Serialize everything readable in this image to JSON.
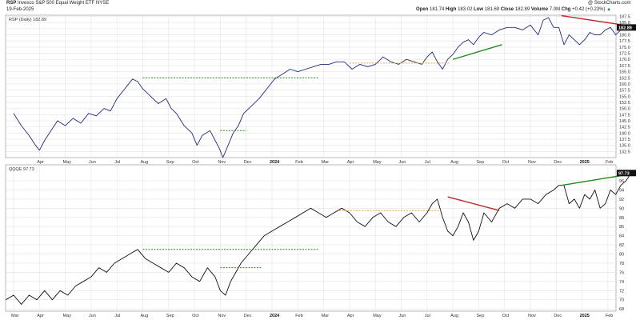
{
  "header": {
    "ticker": "RSP",
    "name": "Invesco S&P 500 Equal Weight ETF",
    "exchange": "NYSE",
    "date": "19-Feb-2025",
    "credit": "@ StockCharts.com",
    "open_label": "Open",
    "open": "181.74",
    "high_label": "High",
    "high": "183.02",
    "low_label": "Low",
    "low": "181.69",
    "close_label": "Close",
    "close": "182.89",
    "volume_label": "Volume",
    "volume": "7.0M",
    "chg_label": "Chg",
    "chg": "+0.42 (+0.23%)",
    "chg_arrow": "▲"
  },
  "colors": {
    "price_line": "#1f2a7a",
    "indicator_line": "#111111",
    "grid": "#e3e3e3",
    "green": "#1e8a1e",
    "red": "#c0282d",
    "orange": "#e8a33c"
  },
  "chart_data": [
    {
      "type": "line",
      "legend": "RSP (Daily) 182.89",
      "last_value_label": "182.89",
      "ylim": [
        130,
        188
      ],
      "y_ticks": [
        "132.5",
        "135.0",
        "137.5",
        "140.0",
        "142.5",
        "145.0",
        "147.5",
        "150.0",
        "152.5",
        "155.0",
        "157.5",
        "160.0",
        "162.5",
        "165.0",
        "167.5",
        "170.0",
        "172.5",
        "175.0",
        "177.5",
        "180.0",
        "182.5",
        "185.0",
        "187.5"
      ],
      "x_ticks": [
        {
          "label": "Apr",
          "x": 1
        },
        {
          "label": "May",
          "x": 2
        },
        {
          "label": "Jun",
          "x": 3
        },
        {
          "label": "Jul",
          "x": 4
        },
        {
          "label": "Aug",
          "x": 5
        },
        {
          "label": "Sep",
          "x": 6
        },
        {
          "label": "Oct",
          "x": 7
        },
        {
          "label": "Nov",
          "x": 8
        },
        {
          "label": "Dec",
          "x": 9
        },
        {
          "label": "2024",
          "x": 10
        },
        {
          "label": "Feb",
          "x": 11
        },
        {
          "label": "Mar",
          "x": 12
        },
        {
          "label": "Apr",
          "x": 13
        },
        {
          "label": "May",
          "x": 14
        },
        {
          "label": "Jun",
          "x": 15
        },
        {
          "label": "Jul",
          "x": 16
        },
        {
          "label": "Aug",
          "x": 17
        },
        {
          "label": "Sep",
          "x": 18
        },
        {
          "label": "Oct",
          "x": 19
        },
        {
          "label": "Nov",
          "x": 20
        },
        {
          "label": "Dec",
          "x": 21
        },
        {
          "label": "2025",
          "x": 22
        },
        {
          "label": "Feb",
          "x": 23
        }
      ],
      "x_bold": [
        "2024",
        "2025"
      ],
      "xlim": [
        0,
        23.9
      ],
      "series": [
        {
          "x": [
            0,
            0.3,
            0.6,
            0.85,
            1.0,
            1.2,
            1.45,
            1.7,
            2.0,
            2.3,
            2.6,
            2.9,
            3.2,
            3.5,
            3.75,
            4.0,
            4.3,
            4.6,
            4.8,
            5.0,
            5.3,
            5.6,
            5.9,
            6.1,
            6.3,
            6.6,
            6.9,
            7.1,
            7.3,
            7.6,
            7.8,
            7.95,
            8.1,
            8.3,
            8.5,
            8.7,
            8.9,
            9.2,
            9.5,
            9.8,
            10.1,
            10.4,
            10.7,
            11.0,
            11.3,
            11.6,
            11.9,
            12.2,
            12.5,
            12.8,
            13.1,
            13.4,
            13.7,
            14.0,
            14.3,
            14.6,
            14.9,
            15.2,
            15.5,
            15.8,
            16.0,
            16.2,
            16.4,
            16.6,
            16.8,
            17.0,
            17.2,
            17.4,
            17.6,
            17.8,
            18.0,
            18.2,
            18.5,
            18.8,
            19.1,
            19.4,
            19.7,
            20.0,
            20.3,
            20.5,
            20.7,
            20.9,
            21.1,
            21.3,
            21.5,
            21.7,
            21.9,
            22.1,
            22.3,
            22.5,
            22.7,
            22.9,
            23.1,
            23.3,
            23.5,
            23.7,
            23.9
          ],
          "y": [
            148,
            143,
            139,
            135,
            133,
            137,
            141,
            145,
            143,
            146,
            144,
            148,
            147,
            150,
            149,
            154,
            158,
            162,
            161,
            158,
            155,
            152,
            154,
            150,
            148,
            143,
            140,
            135,
            139,
            141,
            137,
            134,
            130,
            135,
            140,
            143,
            148,
            151,
            154,
            158,
            162,
            164,
            166,
            165,
            166,
            167,
            168,
            168,
            169,
            169,
            166,
            168,
            167,
            168,
            171,
            169,
            168,
            170,
            169,
            168,
            171,
            173,
            169,
            166,
            170,
            172,
            175,
            177,
            178,
            176,
            179,
            181,
            180,
            182,
            183,
            183,
            182,
            184,
            180,
            186,
            187,
            183,
            183,
            176,
            180,
            178,
            176,
            178,
            181,
            180,
            180,
            182,
            183,
            180,
            182,
            182,
            183
          ]
        }
      ],
      "trendlines": [
        {
          "color": "green",
          "style": "dashed",
          "x": [
            5,
            11.8
          ],
          "y": [
            162.5,
            162.5
          ]
        },
        {
          "color": "green",
          "style": "dashed",
          "x": [
            8,
            9
          ],
          "y": [
            141,
            141
          ]
        },
        {
          "color": "orange",
          "style": "dashed",
          "x": [
            13,
            16.9
          ],
          "y": [
            168.5,
            168.5
          ]
        },
        {
          "color": "green",
          "style": "solid",
          "x": [
            17,
            18.9
          ],
          "y": [
            170,
            176
          ]
        },
        {
          "color": "red",
          "style": "solid",
          "x": [
            21.2,
            23.9
          ],
          "y": [
            187.8,
            183.5
          ]
        }
      ]
    },
    {
      "type": "line",
      "legend": "QQQE 97.73",
      "last_value_label": "97.73",
      "ylim": [
        67.5,
        99.5
      ],
      "y_ticks": [
        "68",
        "70",
        "72",
        "74",
        "76",
        "78",
        "80",
        "82",
        "84",
        "86",
        "88",
        "90",
        "92",
        "94",
        "96"
      ],
      "x_ticks": [
        {
          "label": "Mar",
          "x": 0
        },
        {
          "label": "Apr",
          "x": 1
        },
        {
          "label": "May",
          "x": 2
        },
        {
          "label": "Jun",
          "x": 3
        },
        {
          "label": "Jul",
          "x": 4
        },
        {
          "label": "Aug",
          "x": 5
        },
        {
          "label": "Sep",
          "x": 6
        },
        {
          "label": "Oct",
          "x": 7
        },
        {
          "label": "Nov",
          "x": 8
        },
        {
          "label": "Dec",
          "x": 9
        },
        {
          "label": "2024",
          "x": 10
        },
        {
          "label": "Feb",
          "x": 11
        },
        {
          "label": "Mar",
          "x": 12
        },
        {
          "label": "Apr",
          "x": 13
        },
        {
          "label": "May",
          "x": 14
        },
        {
          "label": "Jun",
          "x": 15
        },
        {
          "label": "Jul",
          "x": 16
        },
        {
          "label": "Aug",
          "x": 17
        },
        {
          "label": "Sep",
          "x": 18
        },
        {
          "label": "Oct",
          "x": 19
        },
        {
          "label": "Nov",
          "x": 20
        },
        {
          "label": "Dec",
          "x": 21
        },
        {
          "label": "2025",
          "x": 22
        },
        {
          "label": "Feb",
          "x": 23
        }
      ],
      "x_bold": [
        "2024",
        "2025"
      ],
      "xlim": [
        -0.3,
        23.9
      ],
      "series": [
        {
          "x": [
            -0.3,
            0.0,
            0.3,
            0.6,
            0.9,
            1.2,
            1.5,
            1.8,
            2.1,
            2.4,
            2.7,
            3.0,
            3.3,
            3.6,
            3.9,
            4.2,
            4.5,
            4.8,
            5.1,
            5.4,
            5.7,
            6.0,
            6.3,
            6.6,
            6.9,
            7.2,
            7.5,
            7.8,
            8.0,
            8.2,
            8.4,
            8.6,
            8.8,
            9.1,
            9.4,
            9.7,
            10.0,
            10.3,
            10.6,
            10.9,
            11.2,
            11.5,
            11.8,
            12.1,
            12.4,
            12.7,
            13.0,
            13.3,
            13.6,
            13.9,
            14.2,
            14.5,
            14.8,
            15.1,
            15.4,
            15.7,
            16.0,
            16.2,
            16.4,
            16.6,
            16.8,
            17.0,
            17.2,
            17.4,
            17.6,
            17.8,
            18.0,
            18.2,
            18.5,
            18.8,
            19.1,
            19.4,
            19.7,
            20.0,
            20.3,
            20.6,
            20.9,
            21.1,
            21.3,
            21.5,
            21.7,
            21.9,
            22.1,
            22.3,
            22.5,
            22.7,
            22.9,
            23.1,
            23.3,
            23.5,
            23.7,
            23.9
          ],
          "y": [
            70,
            71,
            69,
            71,
            70,
            72,
            70,
            72,
            71,
            73,
            74,
            75,
            77,
            76,
            78,
            79,
            80,
            81,
            79,
            78,
            77,
            76,
            78,
            77,
            75,
            74,
            77,
            75,
            72,
            71,
            74,
            76,
            78,
            80,
            82,
            84,
            85,
            86,
            87,
            88,
            89,
            90,
            89,
            88,
            89,
            90,
            89,
            87,
            86,
            88,
            89,
            87,
            86,
            88,
            89,
            87,
            89,
            91,
            92,
            88,
            85,
            84,
            86,
            89,
            87,
            83,
            85,
            89,
            87,
            90,
            91,
            90,
            92,
            92,
            91,
            93,
            94,
            95,
            95,
            91,
            92,
            90,
            93,
            92,
            94,
            90,
            91,
            94,
            93,
            95,
            96,
            97.7
          ]
        }
      ],
      "trendlines": [
        {
          "color": "green",
          "style": "dashed",
          "x": [
            5,
            11.8
          ],
          "y": [
            81,
            81
          ]
        },
        {
          "color": "green",
          "style": "dashed",
          "x": [
            8,
            9.6
          ],
          "y": [
            77,
            77
          ]
        },
        {
          "color": "orange",
          "style": "dashed",
          "x": [
            12.6,
            16.6
          ],
          "y": [
            89.5,
            89.5
          ]
        },
        {
          "color": "red",
          "style": "solid",
          "x": [
            16.8,
            18.8
          ],
          "y": [
            92.5,
            89.5
          ]
        },
        {
          "color": "green",
          "style": "solid",
          "x": [
            21.2,
            23.9
          ],
          "y": [
            95,
            97.5
          ]
        }
      ]
    }
  ]
}
